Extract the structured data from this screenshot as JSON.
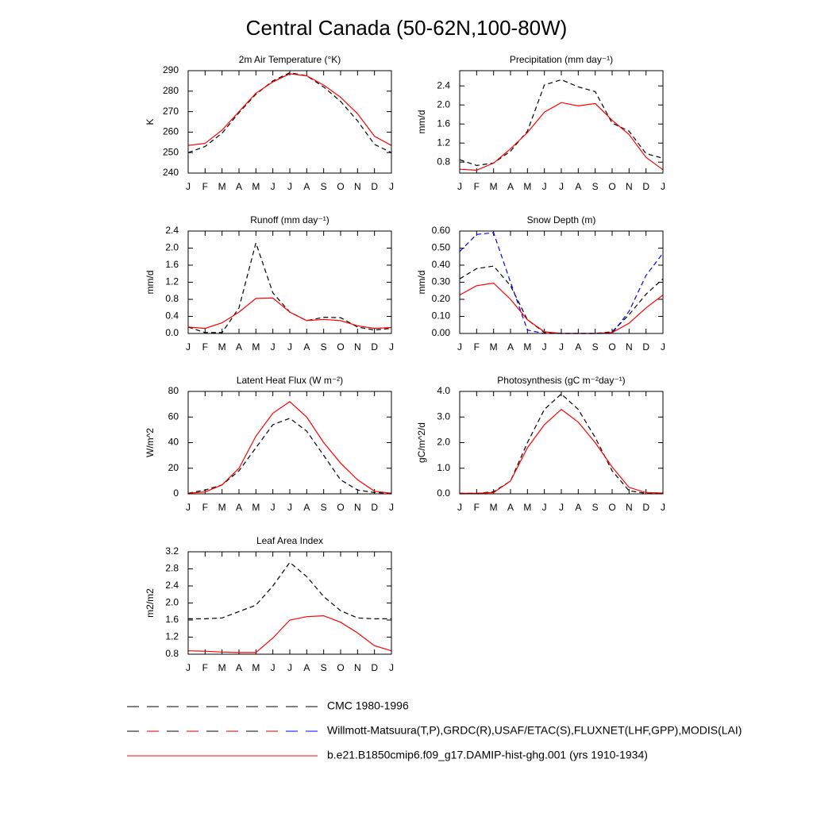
{
  "title": "Central Canada (50-62N,100-80W)",
  "legend": [
    {
      "name": "CMC 1980-1996",
      "colors": [
        "#000000"
      ],
      "dashed": true
    },
    {
      "name": "Willmott-Matsuura(T,P),GRDC(R),USAF/ETAC(S),FLUXNET(LHF,GPP),MODIS(LAI)",
      "colors": [
        "#000000",
        "#cc0000",
        "#0000ff"
      ],
      "dashed": true
    },
    {
      "name": "b.e21.B1850cmip6.f09_g17.DAMIP-hist-ghg.001 (yrs 1910-1934)",
      "colors": [
        "#ff0000"
      ],
      "dashed": false
    }
  ],
  "chart_data": [
    {
      "type": "line",
      "title": "2m Air Temperature (°K)",
      "ylabel": "K",
      "categories": [
        "J",
        "F",
        "M",
        "A",
        "M",
        "J",
        "J",
        "A",
        "S",
        "O",
        "N",
        "D",
        "J"
      ],
      "ylim": [
        240,
        290
      ],
      "yticks": [
        240,
        250,
        260,
        270,
        280,
        290
      ],
      "series": [
        {
          "color": "#000000",
          "dashed": true,
          "values": [
            250,
            253,
            259.5,
            269.5,
            278.5,
            285,
            289,
            287.5,
            282,
            275,
            265.5,
            254,
            250
          ]
        },
        {
          "color": "#ff0000",
          "dashed": false,
          "values": [
            253.5,
            254.5,
            261,
            270,
            279,
            284.5,
            288.5,
            287.5,
            283,
            277,
            269,
            258,
            253.5
          ]
        }
      ]
    },
    {
      "type": "line",
      "title": "Precipitation (mm day⁻¹)",
      "ylabel": "mm/d",
      "categories": [
        "J",
        "F",
        "M",
        "A",
        "M",
        "J",
        "J",
        "A",
        "S",
        "O",
        "N",
        "D",
        "J"
      ],
      "ylim": [
        0.57,
        2.72
      ],
      "yticks": [
        0.8,
        1.2,
        1.6,
        {
          "value": 2,
          "label": "2.0"
        },
        2.4
      ],
      "series": [
        {
          "color": "#000000",
          "dashed": true,
          "values": [
            0.85,
            0.73,
            0.78,
            1.03,
            1.45,
            2.42,
            2.53,
            2.38,
            2.28,
            1.62,
            1.45,
            0.98,
            0.88
          ]
        },
        {
          "color": "#ff0000",
          "dashed": false,
          "values": [
            0.65,
            0.63,
            0.78,
            1.08,
            1.42,
            1.85,
            2.05,
            1.98,
            2.03,
            1.68,
            1.38,
            0.9,
            0.64
          ]
        }
      ]
    },
    {
      "type": "line",
      "title": "Runoff (mm day⁻¹)",
      "ylabel": "mm/d",
      "categories": [
        "J",
        "F",
        "M",
        "A",
        "M",
        "J",
        "J",
        "A",
        "S",
        "O",
        "N",
        "D",
        "J"
      ],
      "ylim": [
        0,
        2.4
      ],
      "yticks": [
        {
          "value": 0,
          "label": "0.0"
        },
        0.4,
        0.8,
        1.2,
        1.6,
        {
          "value": 2,
          "label": "2.0"
        },
        2.4
      ],
      "series": [
        {
          "color": "#000000",
          "dashed": true,
          "values": [
            0.15,
            0.02,
            0.02,
            0.6,
            2.12,
            0.95,
            0.5,
            0.3,
            0.38,
            0.37,
            0.15,
            0.08,
            0.12
          ]
        },
        {
          "color": "#ff0000",
          "dashed": false,
          "values": [
            0.15,
            0.12,
            0.25,
            0.5,
            0.82,
            0.83,
            0.5,
            0.3,
            0.33,
            0.3,
            0.18,
            0.12,
            0.14
          ]
        }
      ]
    },
    {
      "type": "line",
      "title": "Snow Depth (m)",
      "ylabel": "mm/d",
      "categories": [
        "J",
        "F",
        "M",
        "A",
        "M",
        "J",
        "J",
        "A",
        "S",
        "O",
        "N",
        "D",
        "J"
      ],
      "ylim": [
        0,
        0.6
      ],
      "yticks": [
        {
          "value": 0,
          "label": "0.00"
        },
        {
          "value": 0.1,
          "label": "0.10"
        },
        {
          "value": 0.2,
          "label": "0.20"
        },
        {
          "value": 0.3,
          "label": "0.30"
        },
        {
          "value": 0.4,
          "label": "0.40"
        },
        {
          "value": 0.5,
          "label": "0.50"
        },
        {
          "value": 0.6,
          "label": "0.60"
        }
      ],
      "series": [
        {
          "color": "#000000",
          "dashed": true,
          "values": [
            0.32,
            0.38,
            0.395,
            0.28,
            0.08,
            0.005,
            0,
            0,
            0,
            0.01,
            0.11,
            0.23,
            0.32
          ]
        },
        {
          "color": "#0000ff",
          "dashed": true,
          "values": [
            0.48,
            0.58,
            0.59,
            0.3,
            0.02,
            0,
            0,
            0,
            0,
            0,
            0.13,
            0.34,
            0.47
          ]
        },
        {
          "color": "#ff0000",
          "dashed": false,
          "values": [
            0.225,
            0.28,
            0.295,
            0.2,
            0.08,
            0.01,
            0,
            0,
            0,
            0.005,
            0.06,
            0.15,
            0.225
          ]
        }
      ]
    },
    {
      "type": "line",
      "title": "Latent Heat Flux (W m⁻²)",
      "ylabel": "W/m^2",
      "categories": [
        "J",
        "F",
        "M",
        "A",
        "M",
        "J",
        "J",
        "A",
        "S",
        "O",
        "N",
        "D",
        "J"
      ],
      "ylim": [
        0,
        80
      ],
      "yticks": [
        0,
        20,
        40,
        60,
        80
      ],
      "series": [
        {
          "color": "#000000",
          "dashed": true,
          "values": [
            0.5,
            3,
            7,
            18,
            36,
            54,
            59,
            49,
            30,
            11,
            3,
            1,
            0.5
          ]
        },
        {
          "color": "#ff0000",
          "dashed": false,
          "values": [
            0.5,
            1.5,
            7,
            20,
            45,
            63,
            72,
            60,
            40,
            24,
            11,
            2,
            0.5
          ]
        }
      ]
    },
    {
      "type": "line",
      "title": "Photosynthesis (gC m⁻²day⁻¹)",
      "ylabel": "gC/m^2/d",
      "categories": [
        "J",
        "F",
        "M",
        "A",
        "M",
        "J",
        "J",
        "A",
        "S",
        "O",
        "N",
        "D",
        "J"
      ],
      "ylim": [
        0,
        4
      ],
      "yticks": [
        {
          "value": 0,
          "label": "0.0"
        },
        {
          "value": 1,
          "label": "1.0"
        },
        {
          "value": 2,
          "label": "2.0"
        },
        {
          "value": 3,
          "label": "3.0"
        },
        {
          "value": 4,
          "label": "4.0"
        }
      ],
      "series": [
        {
          "color": "#000000",
          "dashed": true,
          "values": [
            0.02,
            0.02,
            0.08,
            0.5,
            2.0,
            3.3,
            3.9,
            3.3,
            2.2,
            0.9,
            0.12,
            0.02,
            0.02
          ]
        },
        {
          "color": "#ff0000",
          "dashed": false,
          "values": [
            0.02,
            0.02,
            0.05,
            0.5,
            1.8,
            2.7,
            3.3,
            2.8,
            2.0,
            1.05,
            0.25,
            0.05,
            0.03
          ]
        }
      ]
    },
    {
      "type": "line",
      "title": "Leaf Area Index",
      "ylabel": "m2/m2",
      "categories": [
        "J",
        "F",
        "M",
        "A",
        "M",
        "J",
        "J",
        "A",
        "S",
        "O",
        "N",
        "D",
        "J"
      ],
      "ylim": [
        0.8,
        3.2
      ],
      "yticks": [
        0.8,
        1.2,
        1.6,
        {
          "value": 2,
          "label": "2.0"
        },
        2.4,
        2.8,
        3.2
      ],
      "series": [
        {
          "color": "#000000",
          "dashed": true,
          "values": [
            1.63,
            1.63,
            1.65,
            1.8,
            1.95,
            2.4,
            2.95,
            2.62,
            2.15,
            1.82,
            1.65,
            1.63,
            1.63
          ]
        },
        {
          "color": "#ff0000",
          "dashed": false,
          "values": [
            0.88,
            0.87,
            0.85,
            0.84,
            0.84,
            1.18,
            1.6,
            1.68,
            1.7,
            1.55,
            1.3,
            1.0,
            0.88
          ]
        }
      ]
    }
  ]
}
